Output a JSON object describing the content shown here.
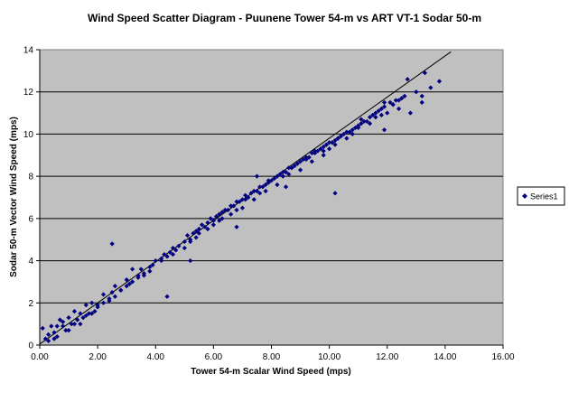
{
  "chart_data": {
    "type": "scatter",
    "title": "Wind Speed Scatter Diagram - Puunene Tower 54-m vs ART VT-1 Sodar 50-m",
    "xlabel": "Tower 54-m Scalar Wind Speed (mps)",
    "ylabel": "Sodar 50-m Vector Wind Speed (mps)",
    "xlim": [
      0,
      16
    ],
    "ylim": [
      0,
      14
    ],
    "x_ticks": [
      "0.00",
      "2.00",
      "4.00",
      "6.00",
      "8.00",
      "10.00",
      "12.00",
      "14.00",
      "16.00"
    ],
    "y_ticks": [
      "0",
      "2",
      "4",
      "6",
      "8",
      "10",
      "12",
      "14"
    ],
    "gridlines": "horizontal",
    "legend_position": "right",
    "plot_background": "#c0c0c0",
    "marker_color": "#000080",
    "marker": "diamond",
    "reference_line": {
      "x": [
        0,
        14.2
      ],
      "y": [
        0.05,
        13.9
      ],
      "color": "#000000"
    },
    "series": [
      {
        "name": "Series1",
        "x": [
          0.1,
          0.2,
          0.3,
          0.4,
          0.5,
          0.6,
          0.7,
          0.8,
          0.9,
          1.0,
          1.1,
          1.2,
          1.3,
          1.4,
          1.5,
          1.6,
          1.7,
          1.8,
          1.9,
          2.0,
          2.2,
          2.4,
          2.5,
          2.6,
          2.8,
          3.0,
          3.2,
          3.4,
          3.5,
          3.6,
          3.8,
          4.0,
          4.2,
          4.3,
          4.5,
          4.6,
          4.8,
          5.0,
          5.1,
          5.2,
          5.3,
          5.4,
          5.5,
          5.6,
          5.7,
          5.8,
          5.9,
          6.0,
          6.1,
          6.2,
          6.3,
          6.4,
          6.5,
          6.6,
          6.7,
          6.8,
          6.9,
          7.0,
          7.1,
          7.2,
          7.3,
          7.4,
          7.5,
          7.6,
          7.7,
          7.8,
          7.9,
          8.0,
          8.1,
          8.2,
          8.3,
          8.4,
          8.5,
          8.6,
          8.7,
          8.8,
          8.9,
          9.0,
          9.1,
          9.2,
          9.3,
          9.4,
          9.5,
          9.6,
          9.7,
          9.8,
          9.9,
          10.0,
          10.1,
          10.2,
          10.3,
          10.4,
          10.5,
          10.6,
          10.7,
          10.8,
          10.9,
          11.0,
          11.1,
          11.2,
          11.3,
          11.4,
          11.5,
          11.6,
          11.7,
          11.8,
          11.9,
          12.0,
          12.1,
          12.2,
          12.3,
          12.4,
          12.5,
          12.6,
          12.8,
          13.0,
          13.2,
          13.3,
          13.5,
          13.8,
          0.3,
          0.6,
          1.0,
          1.4,
          1.8,
          2.2,
          2.6,
          3.0,
          3.4,
          3.8,
          4.2,
          4.6,
          5.0,
          5.4,
          5.8,
          6.2,
          6.6,
          7.0,
          7.4,
          7.8,
          8.2,
          8.6,
          9.0,
          9.4,
          9.8,
          10.2,
          10.6,
          11.0,
          11.4,
          11.8,
          12.2,
          0.5,
          1.2,
          2.0,
          2.8,
          3.6,
          4.4,
          5.2,
          6.0,
          6.8,
          7.6,
          8.4,
          9.2,
          10.0,
          10.8,
          11.6,
          12.4,
          2.5,
          4.4,
          5.2,
          7.5,
          8.5,
          10.2,
          3.2,
          6.8,
          9.8,
          11.9,
          13.2,
          0.8,
          1.6,
          2.4,
          3.1,
          3.9,
          4.7,
          5.5,
          6.3,
          7.1,
          7.9,
          8.7,
          9.5,
          10.3,
          11.1,
          11.9,
          12.7
        ],
        "y": [
          0.8,
          0.3,
          0.5,
          0.9,
          0.6,
          0.4,
          1.2,
          0.9,
          0.7,
          1.3,
          1.0,
          1.6,
          1.2,
          1.5,
          1.3,
          1.9,
          1.5,
          2.0,
          1.6,
          1.9,
          2.4,
          2.2,
          2.5,
          2.8,
          2.6,
          3.1,
          3.0,
          3.3,
          3.6,
          3.4,
          3.7,
          4.0,
          4.1,
          4.3,
          4.4,
          4.6,
          4.7,
          4.9,
          5.2,
          5.0,
          5.3,
          5.4,
          5.5,
          5.7,
          5.6,
          5.8,
          6.0,
          5.9,
          6.1,
          6.2,
          6.3,
          6.4,
          6.4,
          6.6,
          6.6,
          6.8,
          6.8,
          6.9,
          7.1,
          7.0,
          7.2,
          7.3,
          7.3,
          7.5,
          7.5,
          7.6,
          7.8,
          7.8,
          7.9,
          8.0,
          8.1,
          8.2,
          8.2,
          8.4,
          8.4,
          8.5,
          8.6,
          8.7,
          8.8,
          8.9,
          8.9,
          9.1,
          9.1,
          9.2,
          9.3,
          9.4,
          9.5,
          9.6,
          9.6,
          9.7,
          9.8,
          9.9,
          10.0,
          10.1,
          10.1,
          10.2,
          10.3,
          10.4,
          10.5,
          10.6,
          10.6,
          10.8,
          10.9,
          11.0,
          11.1,
          11.2,
          11.3,
          11.0,
          11.5,
          11.4,
          11.6,
          11.2,
          11.7,
          11.8,
          11.0,
          12.0,
          11.5,
          12.9,
          12.2,
          12.5,
          0.2,
          0.9,
          0.7,
          1.0,
          1.5,
          2.0,
          2.3,
          2.8,
          3.2,
          3.5,
          4.0,
          4.3,
          4.6,
          5.1,
          5.5,
          5.9,
          6.2,
          6.5,
          6.9,
          7.3,
          7.6,
          8.1,
          8.3,
          8.7,
          9.0,
          9.5,
          9.8,
          10.3,
          10.5,
          10.9,
          11.4,
          0.3,
          1.0,
          1.8,
          2.6,
          3.3,
          4.2,
          4.9,
          5.7,
          6.4,
          7.2,
          8.0,
          8.8,
          9.3,
          10.0,
          10.8,
          11.6,
          4.8,
          2.3,
          4.0,
          8.0,
          7.5,
          7.2,
          3.6,
          5.6,
          9.2,
          10.2,
          11.8,
          1.1,
          1.4,
          2.1,
          2.9,
          3.8,
          4.5,
          5.3,
          6.0,
          6.9,
          7.7,
          8.4,
          9.2,
          9.8,
          10.7,
          11.5,
          12.6
        ]
      }
    ]
  }
}
